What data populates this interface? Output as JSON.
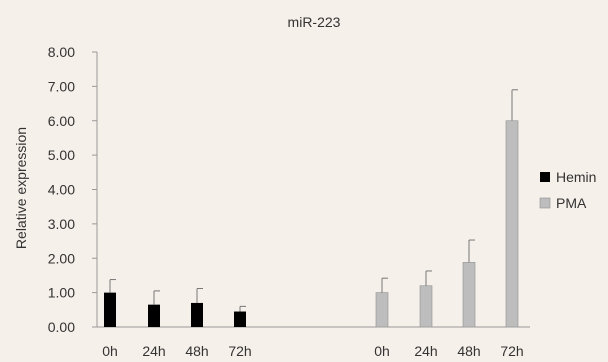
{
  "chart_data": {
    "type": "bar",
    "title": "miR-223",
    "ylabel": "Relative expression",
    "xlabel": "",
    "ylim": [
      0,
      8
    ],
    "yticks": [
      "0.00",
      "1.00",
      "2.00",
      "3.00",
      "4.00",
      "5.00",
      "6.00",
      "7.00",
      "8.00"
    ],
    "grid": false,
    "legend_position": "right",
    "series": [
      {
        "name": "Hemin",
        "color": "#000000",
        "categories": [
          "0h",
          "24h",
          "48h",
          "72h"
        ],
        "values": [
          1.0,
          0.65,
          0.7,
          0.45
        ],
        "errors": [
          0.38,
          0.4,
          0.42,
          0.15
        ]
      },
      {
        "name": "PMA",
        "color": "#bdbdbd",
        "categories": [
          "0h",
          "24h",
          "48h",
          "72h"
        ],
        "values": [
          1.0,
          1.2,
          1.88,
          6.0
        ],
        "errors": [
          0.42,
          0.43,
          0.65,
          0.9
        ]
      }
    ]
  }
}
